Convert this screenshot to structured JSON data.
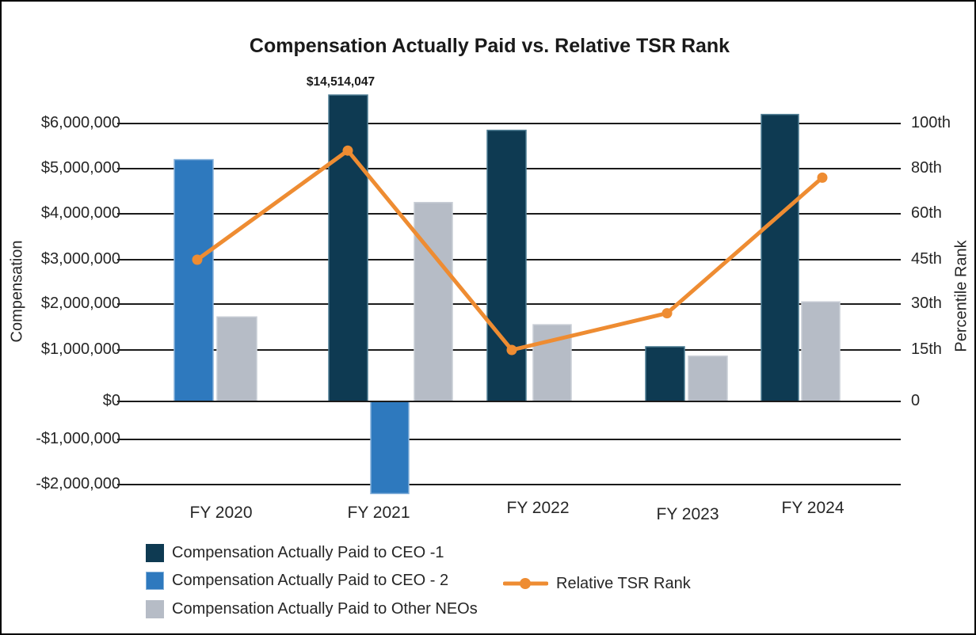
{
  "chart": {
    "title": "Compensation Actually Paid vs. Relative TSR Rank",
    "left_axis_title": "Compensation",
    "right_axis_title": "Percentile Rank"
  },
  "chart_data": {
    "type": "bar",
    "subtype": "clustered bars with secondary-axis line (combo chart)",
    "title": "Compensation Actually Paid vs. Relative TSR Rank",
    "xlabel": "",
    "ylabel": "Compensation",
    "ylabel_right": "Percentile Rank",
    "categories": [
      "FY 2020",
      "FY 2021",
      "FY 2022",
      "FY 2023",
      "FY 2024"
    ],
    "left_axis": {
      "tick_labels": [
        "$6,000,000",
        "$5,000,000",
        "$4,000,000",
        "$3,000,000",
        "$2,000,000",
        "$1,000,000",
        "$0",
        "-$1,000,000",
        "-$2,000,000"
      ],
      "tick_values": [
        6000000,
        5000000,
        4000000,
        3000000,
        2000000,
        1000000,
        0,
        -1000000,
        -2000000
      ]
    },
    "right_axis": {
      "tick_labels": [
        "100th",
        "80th",
        "60th",
        "45th",
        "30th",
        "15th",
        "0"
      ],
      "tick_values": [
        100,
        80,
        60,
        45,
        30,
        15,
        0
      ]
    },
    "series": [
      {
        "name": "Compensation Actually Paid to CEO -1",
        "type": "bar",
        "axis": "left",
        "color": "#0E3A52",
        "values": [
          null,
          14514047,
          5850000,
          1070000,
          6200000
        ]
      },
      {
        "name": "Compensation Actually Paid to CEO - 2",
        "type": "bar",
        "axis": "left",
        "color": "#2E79BE",
        "values": [
          5200000,
          -2200000,
          null,
          null,
          null
        ]
      },
      {
        "name": "Compensation Actually Paid to Other NEOs",
        "type": "bar",
        "axis": "left",
        "color": "#B6BCC6",
        "values": [
          1720000,
          4250000,
          1550000,
          880000,
          2050000
        ]
      },
      {
        "name": "Relative TSR Rank",
        "type": "line",
        "axis": "right",
        "color": "#EE8C32",
        "values": [
          45,
          88,
          15,
          27,
          76
        ]
      }
    ],
    "data_labels": [
      {
        "series": 0,
        "category": 1,
        "text": "$14,514,047",
        "note": "bar clipped at top of plot area"
      }
    ],
    "grid": "horizontal gridlines on",
    "legend_position": "bottom-left, bar entries stacked; line entry to the right"
  },
  "colors": {
    "ceo1_bar": "#0E3A52",
    "ceo2_bar": "#2E79BE",
    "neo_bar": "#B6BCC6",
    "tsr_line": "#EE8C32",
    "gridline": "#1b1b1b",
    "text": "#262626",
    "background": "#ffffff",
    "border": "#000000"
  }
}
